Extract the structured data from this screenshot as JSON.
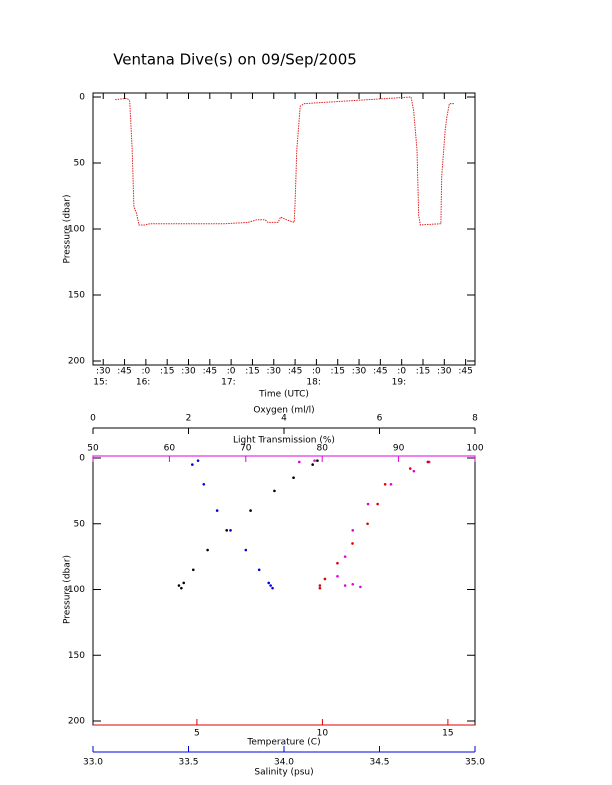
{
  "chart_data": [
    {
      "type": "line",
      "title": "Ventana Dive(s) on 09/Sep/2005",
      "xlabel": "Time (UTC)",
      "ylabel": "Pressure (dbar)",
      "color": "#e02020",
      "y_inverted": true,
      "x": [
        15.64,
        15.78,
        15.81,
        15.84,
        15.86,
        15.89,
        15.92,
        15.99,
        16.05,
        16.93,
        17.2,
        17.3,
        17.4,
        17.43,
        17.55,
        17.58,
        17.65,
        17.74,
        17.75,
        17.77,
        17.81,
        17.86,
        19.11,
        19.14,
        19.18,
        19.2,
        19.22,
        19.46,
        19.47,
        19.51,
        19.53,
        19.56,
        19.62
      ],
      "values": [
        2,
        1,
        3,
        40,
        83,
        88,
        97,
        97,
        96,
        96,
        95,
        93,
        93,
        95,
        95,
        91,
        93,
        95,
        80,
        40,
        7,
        5,
        0,
        10,
        40,
        90,
        97,
        96,
        60,
        25,
        15,
        5,
        5
      ],
      "xlim": [
        15.38,
        19.86
      ],
      "xticks": [
        {
          "value": 15.5,
          "label": ":30"
        },
        {
          "value": 15.75,
          "label": ":45"
        },
        {
          "value": 16,
          "label": ":0"
        },
        {
          "value": 16.25,
          "label": ":15"
        },
        {
          "value": 16.5,
          "label": ":30"
        },
        {
          "value": 16.75,
          "label": ":45"
        },
        {
          "value": 17,
          "label": ":0"
        },
        {
          "value": 17.25,
          "label": ":15"
        },
        {
          "value": 17.5,
          "label": ":30"
        },
        {
          "value": 17.75,
          "label": ":45"
        },
        {
          "value": 18,
          "label": ":0"
        },
        {
          "value": 18.25,
          "label": ":15"
        },
        {
          "value": 18.5,
          "label": ":30"
        },
        {
          "value": 18.75,
          "label": ":45"
        },
        {
          "value": 19,
          "label": ":0"
        },
        {
          "value": 19.25,
          "label": ":15"
        },
        {
          "value": 19.5,
          "label": ":30"
        },
        {
          "value": 19.75,
          "label": ":45"
        }
      ],
      "x_hour_labels": [
        {
          "value": 15.5,
          "label": "15:"
        },
        {
          "value": 16,
          "label": "16:"
        },
        {
          "value": 17,
          "label": "17:"
        },
        {
          "value": 18,
          "label": "18:"
        },
        {
          "value": 19,
          "label": "19:"
        }
      ],
      "ylim": [
        0,
        200
      ],
      "yticks": [
        0,
        50,
        100,
        150,
        200
      ]
    },
    {
      "type": "scatter",
      "ylabel": "Pressure (dbar)",
      "y_inverted": true,
      "ylim": [
        0,
        200
      ],
      "yticks": [
        0,
        50,
        100,
        150,
        200
      ],
      "x_axes": [
        {
          "label": "Oxygen (ml/l)",
          "color": "#000000",
          "position": "top-outer",
          "lim": [
            0,
            8
          ],
          "ticks": [
            0,
            2,
            4,
            6,
            8
          ]
        },
        {
          "label": "Light Transmission (%)",
          "color": "#e000e0",
          "position": "top",
          "lim": [
            50,
            100
          ],
          "ticks": [
            50,
            60,
            70,
            80,
            90,
            100
          ]
        },
        {
          "label": "Temperature (C)",
          "color": "#e00000",
          "position": "bottom",
          "lim": [
            0.86,
            16.08
          ],
          "ticks": [
            5,
            10,
            15
          ]
        },
        {
          "label": "Salinity (psu)",
          "color": "#0000e0",
          "position": "bottom-outer",
          "lim": [
            33,
            35
          ],
          "ticks": [
            {
              "value": 33,
              "label": "33.0"
            },
            33.5,
            {
              "value": 34,
              "label": "34.0"
            },
            34.5,
            {
              "value": 35,
              "label": "35.0"
            }
          ]
        }
      ],
      "series": [
        {
          "color": "#000000",
          "x_axis": 0,
          "x": [
            4.7,
            4.6,
            4.2,
            3.8,
            3.3,
            2.8,
            2.4,
            2.1,
            1.9,
            1.8,
            1.85
          ],
          "values": [
            2,
            5,
            15,
            25,
            40,
            55,
            70,
            85,
            95,
            97,
            99
          ]
        },
        {
          "color": "#e000e0",
          "x_axis": 1,
          "x": [
            77,
            79,
            94,
            92,
            89,
            86,
            84,
            83,
            82,
            83,
            85,
            84
          ],
          "values": [
            3,
            2,
            3,
            10,
            20,
            35,
            55,
            75,
            90,
            97,
            98,
            96
          ]
        },
        {
          "color": "#e00000",
          "x_axis": 2,
          "x": [
            14.2,
            13.5,
            12.5,
            12.2,
            11.8,
            11.2,
            10.6,
            10.1,
            9.9,
            9.9
          ],
          "values": [
            3,
            8,
            20,
            35,
            50,
            65,
            80,
            92,
            97,
            99
          ]
        },
        {
          "color": "#0000e0",
          "x_axis": 3,
          "x": [
            33.55,
            33.52,
            33.58,
            33.65,
            33.72,
            33.8,
            33.87,
            33.92,
            33.93,
            33.94
          ],
          "values": [
            2,
            5,
            20,
            40,
            55,
            70,
            85,
            95,
            97,
            99
          ]
        }
      ]
    }
  ]
}
